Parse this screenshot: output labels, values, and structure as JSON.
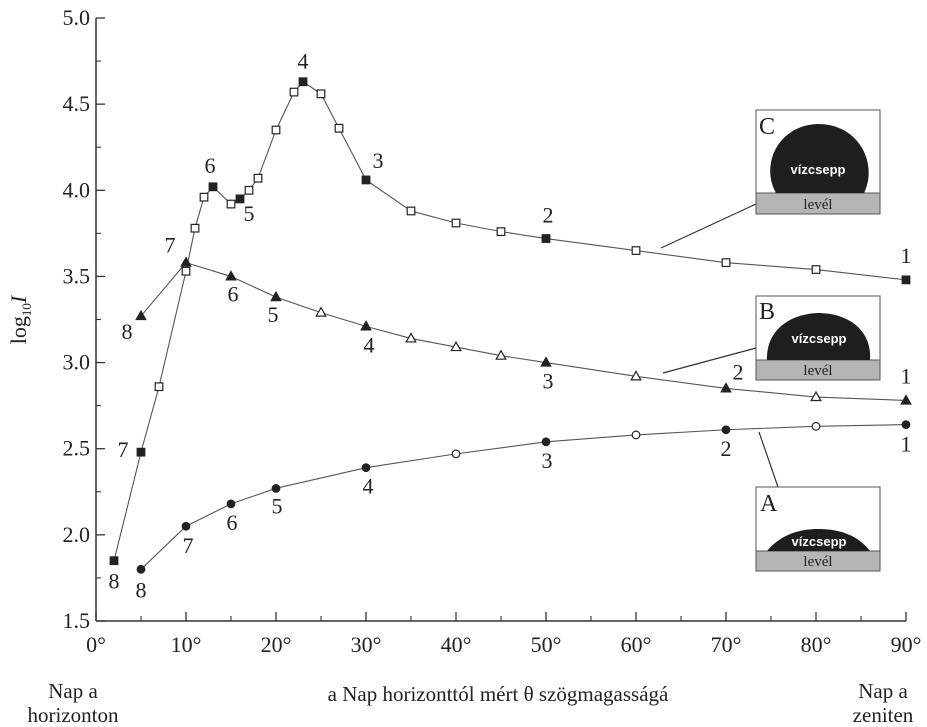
{
  "chart_data": {
    "type": "line",
    "ylabel_main": "log",
    "ylabel_sub": "10",
    "ylabel_var": "I",
    "xlabel": "a Nap horizonttól mért θ szögmagasságá",
    "x_left_caption": [
      "Nap a",
      "horizonton"
    ],
    "x_right_caption": [
      "Nap a",
      "zeniten"
    ],
    "xlim": [
      0,
      90
    ],
    "ylim": [
      1.5,
      5.0
    ],
    "x_ticks": [
      0,
      10,
      20,
      30,
      40,
      50,
      60,
      70,
      80,
      90
    ],
    "x_tick_labels": [
      "0°",
      "10°",
      "20°",
      "30°",
      "40°",
      "50°",
      "60°",
      "70°",
      "80°",
      "90°"
    ],
    "y_ticks": [
      1.5,
      2.0,
      2.5,
      3.0,
      3.5,
      4.0,
      4.5,
      5.0
    ],
    "y_tick_labels": [
      "1.5",
      "2.0",
      "2.5",
      "3.0",
      "3.5",
      "4.0",
      "4.5",
      "5.0"
    ],
    "series": [
      {
        "name": "C",
        "marker": "square",
        "color": "#222222",
        "points": [
          {
            "x": 2,
            "y": 1.85,
            "filled": true,
            "label": "8"
          },
          {
            "x": 5,
            "y": 2.48,
            "filled": true,
            "label": "7"
          },
          {
            "x": 7,
            "y": 2.86,
            "filled": false
          },
          {
            "x": 10,
            "y": 3.53,
            "filled": false
          },
          {
            "x": 11,
            "y": 3.78,
            "filled": false
          },
          {
            "x": 12,
            "y": 3.96,
            "filled": false
          },
          {
            "x": 13,
            "y": 4.02,
            "filled": true,
            "label": "6"
          },
          {
            "x": 15,
            "y": 3.92,
            "filled": false
          },
          {
            "x": 16,
            "y": 3.95,
            "filled": true,
            "label": "5"
          },
          {
            "x": 17,
            "y": 4.0,
            "filled": false
          },
          {
            "x": 18,
            "y": 4.07,
            "filled": false
          },
          {
            "x": 20,
            "y": 4.35,
            "filled": false
          },
          {
            "x": 22,
            "y": 4.57,
            "filled": false
          },
          {
            "x": 23,
            "y": 4.63,
            "filled": true,
            "label": "4"
          },
          {
            "x": 25,
            "y": 4.56,
            "filled": false
          },
          {
            "x": 27,
            "y": 4.36,
            "filled": false
          },
          {
            "x": 30,
            "y": 4.06,
            "filled": true,
            "label": "3"
          },
          {
            "x": 35,
            "y": 3.88,
            "filled": false
          },
          {
            "x": 40,
            "y": 3.81,
            "filled": false
          },
          {
            "x": 45,
            "y": 3.76,
            "filled": false
          },
          {
            "x": 50,
            "y": 3.72,
            "filled": true,
            "label": "2"
          },
          {
            "x": 60,
            "y": 3.65,
            "filled": false
          },
          {
            "x": 70,
            "y": 3.58,
            "filled": false
          },
          {
            "x": 80,
            "y": 3.54,
            "filled": false
          },
          {
            "x": 90,
            "y": 3.48,
            "filled": true,
            "label": "1"
          }
        ]
      },
      {
        "name": "B",
        "marker": "triangle",
        "color": "#222222",
        "points": [
          {
            "x": 5,
            "y": 3.27,
            "filled": true,
            "label": "8"
          },
          {
            "x": 10,
            "y": 3.58,
            "filled": true,
            "label": "7"
          },
          {
            "x": 15,
            "y": 3.5,
            "filled": true,
            "label": "6"
          },
          {
            "x": 20,
            "y": 3.38,
            "filled": true,
            "label": "5"
          },
          {
            "x": 25,
            "y": 3.29,
            "filled": false
          },
          {
            "x": 30,
            "y": 3.21,
            "filled": true,
            "label": "4"
          },
          {
            "x": 35,
            "y": 3.14,
            "filled": false
          },
          {
            "x": 40,
            "y": 3.09,
            "filled": false
          },
          {
            "x": 45,
            "y": 3.04,
            "filled": false
          },
          {
            "x": 50,
            "y": 3.0,
            "filled": true,
            "label": "3"
          },
          {
            "x": 60,
            "y": 2.92,
            "filled": false
          },
          {
            "x": 70,
            "y": 2.85,
            "filled": true,
            "label": "2"
          },
          {
            "x": 80,
            "y": 2.8,
            "filled": false
          },
          {
            "x": 90,
            "y": 2.78,
            "filled": true,
            "label": "1"
          }
        ]
      },
      {
        "name": "A",
        "marker": "circle",
        "color": "#222222",
        "points": [
          {
            "x": 5,
            "y": 1.8,
            "filled": true,
            "label": "8"
          },
          {
            "x": 10,
            "y": 2.05,
            "filled": true,
            "label": "7"
          },
          {
            "x": 15,
            "y": 2.18,
            "filled": true,
            "label": "6"
          },
          {
            "x": 20,
            "y": 2.27,
            "filled": true,
            "label": "5"
          },
          {
            "x": 30,
            "y": 2.39,
            "filled": true,
            "label": "4"
          },
          {
            "x": 40,
            "y": 2.47,
            "filled": false
          },
          {
            "x": 50,
            "y": 2.54,
            "filled": true,
            "label": "3"
          },
          {
            "x": 60,
            "y": 2.58,
            "filled": false
          },
          {
            "x": 70,
            "y": 2.61,
            "filled": true,
            "label": "2"
          },
          {
            "x": 80,
            "y": 2.63,
            "filled": false
          },
          {
            "x": 90,
            "y": 2.64,
            "filled": true,
            "label": "1"
          }
        ]
      }
    ],
    "insets": [
      {
        "letter": "C",
        "drop_label": "vízcsepp",
        "leaf_label": "levél"
      },
      {
        "letter": "B",
        "drop_label": "vízcsepp",
        "leaf_label": "levél"
      },
      {
        "letter": "A",
        "drop_label": "vízcsepp",
        "leaf_label": "levél"
      }
    ]
  }
}
